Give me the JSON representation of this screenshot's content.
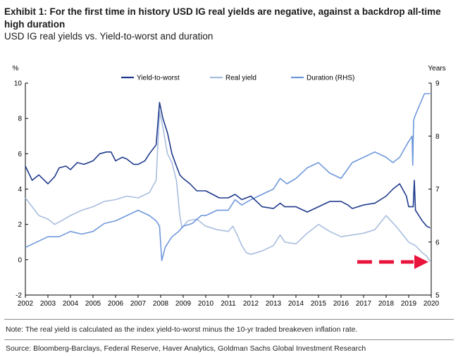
{
  "header": {
    "title": "Exhibit 1: For the first time in history USD IG real yields are negative, against a backdrop all-time high duration",
    "subtitle": "USD IG real yields vs. Yield-to-worst and duration"
  },
  "footer": {
    "note": "Note: The real yield is calculated as the index yield-to-worst minus the 10-yr traded breakeven inflation rate.",
    "source": "Source: Bloomberg-Barclays, Federal Reserve, Haver Analytics, Goldman Sachs Global Investment Research"
  },
  "colors": {
    "ytw": "#1f3a8c",
    "real": "#a9bedf",
    "duration": "#6f98dc",
    "arrow": "#e8143c",
    "axis": "#000000"
  },
  "chart_data": {
    "type": "line",
    "title": "USD IG real yields vs. Yield-to-worst and duration",
    "ylabel_left": "%",
    "ylabel_right": "Years",
    "xlim": [
      2002,
      2020
    ],
    "ylim_left": [
      -2,
      10
    ],
    "ylim_right": [
      5,
      9
    ],
    "x_ticks": [
      "2002",
      "2003",
      "2004",
      "2005",
      "2006",
      "2007",
      "2008",
      "2009",
      "2010",
      "2011",
      "2012",
      "2013",
      "2014",
      "2015",
      "2016",
      "2017",
      "2018",
      "2019",
      "2020"
    ],
    "y_ticks_left": [
      "-2",
      "0",
      "2",
      "4",
      "6",
      "8",
      "10"
    ],
    "y_ticks_right": [
      "5",
      "6",
      "7",
      "8",
      "9"
    ],
    "legend": [
      "Yield-to-worst",
      "Real yield",
      "Duration (RHS)"
    ],
    "legend_position": "top",
    "annotation": "red dashed arrow pointing to the latest negative real yield",
    "series": [
      {
        "name": "Yield-to-worst",
        "axis": "left",
        "x": [
          2002.0,
          2002.3,
          2002.6,
          2003.0,
          2003.3,
          2003.5,
          2003.8,
          2004.0,
          2004.3,
          2004.6,
          2005.0,
          2005.3,
          2005.6,
          2005.8,
          2006.0,
          2006.3,
          2006.5,
          2006.8,
          2007.0,
          2007.3,
          2007.5,
          2007.8,
          2007.95,
          2008.1,
          2008.3,
          2008.5,
          2008.7,
          2008.85,
          2009.0,
          2009.3,
          2009.6,
          2010.0,
          2010.3,
          2010.6,
          2011.0,
          2011.3,
          2011.6,
          2012.0,
          2012.5,
          2013.0,
          2013.3,
          2013.5,
          2014.0,
          2014.5,
          2015.0,
          2015.5,
          2016.0,
          2016.3,
          2016.5,
          2017.0,
          2017.5,
          2018.0,
          2018.3,
          2018.6,
          2018.9,
          2019.0,
          2019.2,
          2019.25,
          2019.3,
          2019.45,
          2019.6,
          2019.8,
          2019.95
        ],
        "values": [
          5.3,
          4.5,
          4.8,
          4.3,
          4.7,
          5.2,
          5.3,
          5.1,
          5.5,
          5.4,
          5.6,
          6.0,
          6.1,
          6.1,
          5.6,
          5.8,
          5.7,
          5.4,
          5.4,
          5.6,
          6.0,
          6.5,
          8.9,
          8.0,
          7.2,
          6.0,
          5.3,
          4.8,
          4.6,
          4.3,
          3.9,
          3.9,
          3.7,
          3.5,
          3.5,
          3.7,
          3.4,
          3.6,
          3.0,
          2.9,
          3.2,
          3.0,
          3.0,
          2.7,
          3.0,
          3.3,
          3.3,
          3.1,
          2.9,
          3.1,
          3.2,
          3.6,
          4.0,
          4.3,
          3.6,
          3.0,
          3.0,
          4.5,
          2.8,
          2.5,
          2.2,
          1.9,
          1.8
        ]
      },
      {
        "name": "Real yield",
        "axis": "left",
        "x": [
          2002.0,
          2002.3,
          2002.6,
          2003.0,
          2003.3,
          2003.6,
          2004.0,
          2004.5,
          2005.0,
          2005.5,
          2006.0,
          2006.5,
          2007.0,
          2007.5,
          2007.8,
          2007.95,
          2008.1,
          2008.3,
          2008.5,
          2008.7,
          2008.85,
          2008.95,
          2009.2,
          2009.6,
          2010.0,
          2010.5,
          2011.0,
          2011.2,
          2011.4,
          2011.6,
          2011.8,
          2012.0,
          2012.5,
          2013.0,
          2013.3,
          2013.5,
          2014.0,
          2014.5,
          2015.0,
          2015.5,
          2016.0,
          2016.5,
          2017.0,
          2017.5,
          2018.0,
          2018.5,
          2019.0,
          2019.3,
          2019.6,
          2019.8,
          2019.95
        ],
        "values": [
          3.5,
          3.0,
          2.5,
          2.3,
          2.0,
          2.2,
          2.5,
          2.8,
          3.0,
          3.3,
          3.4,
          3.6,
          3.5,
          3.8,
          4.5,
          8.4,
          7.5,
          6.0,
          5.5,
          4.5,
          2.5,
          1.8,
          2.2,
          2.3,
          1.9,
          1.7,
          1.6,
          1.9,
          1.4,
          0.8,
          0.4,
          0.3,
          0.5,
          0.8,
          1.4,
          1.0,
          0.9,
          1.5,
          2.0,
          1.6,
          1.3,
          1.4,
          1.5,
          1.7,
          2.5,
          1.8,
          1.0,
          0.8,
          0.4,
          0.2,
          -0.1
        ]
      },
      {
        "name": "Duration (RHS)",
        "axis": "right",
        "x": [
          2002.0,
          2002.5,
          2003.0,
          2003.5,
          2004.0,
          2004.5,
          2005.0,
          2005.5,
          2006.0,
          2006.5,
          2007.0,
          2007.5,
          2007.8,
          2007.95,
          2008.05,
          2008.2,
          2008.5,
          2008.8,
          2009.0,
          2009.4,
          2009.8,
          2010.0,
          2010.5,
          2011.0,
          2011.3,
          2011.6,
          2012.0,
          2012.5,
          2013.0,
          2013.3,
          2013.6,
          2014.0,
          2014.5,
          2015.0,
          2015.5,
          2016.0,
          2016.5,
          2017.0,
          2017.5,
          2018.0,
          2018.3,
          2018.6,
          2019.0,
          2019.15,
          2019.18,
          2019.22,
          2019.3,
          2019.5,
          2019.7,
          2019.85,
          2019.95
        ],
        "values": [
          5.9,
          6.0,
          6.1,
          6.1,
          6.2,
          6.15,
          6.2,
          6.35,
          6.4,
          6.5,
          6.6,
          6.5,
          6.4,
          6.3,
          5.65,
          5.9,
          6.1,
          6.2,
          6.3,
          6.35,
          6.5,
          6.5,
          6.6,
          6.6,
          6.8,
          6.7,
          6.8,
          6.9,
          7.0,
          7.2,
          7.1,
          7.2,
          7.4,
          7.5,
          7.3,
          7.2,
          7.5,
          7.6,
          7.7,
          7.6,
          7.5,
          7.6,
          7.9,
          8.0,
          7.45,
          8.3,
          8.4,
          8.6,
          8.8,
          8.8,
          8.8
        ]
      }
    ]
  }
}
